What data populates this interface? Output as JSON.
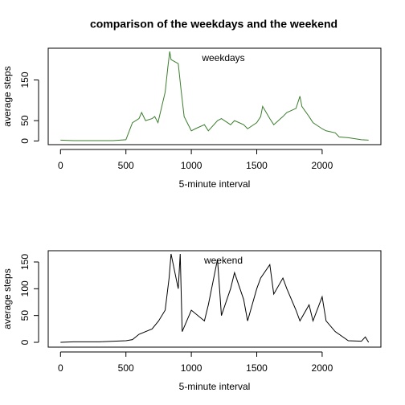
{
  "title": "comparison of the weekdays and the weekend",
  "chart_data": [
    {
      "type": "line",
      "annotation": "weekdays",
      "xlabel": "5-minute interval",
      "ylabel": "average steps",
      "xlim": [
        -94,
        2449
      ],
      "ylim": [
        -9,
        228
      ],
      "xticks": [
        0,
        500,
        1000,
        1500,
        2000
      ],
      "yticks": [
        0,
        50,
        150
      ],
      "series": [
        {
          "name": "weekdays",
          "color": "#3b7d2c",
          "x": [
            0,
            100,
            200,
            300,
            400,
            500,
            520,
            550,
            600,
            620,
            650,
            700,
            720,
            745,
            800,
            820,
            835,
            845,
            900,
            920,
            945,
            1000,
            1030,
            1100,
            1130,
            1200,
            1230,
            1300,
            1330,
            1400,
            1430,
            1500,
            1530,
            1545,
            1600,
            1630,
            1700,
            1730,
            1800,
            1830,
            1845,
            1900,
            1930,
            2000,
            2030,
            2100,
            2130,
            2200,
            2300,
            2355
          ],
          "values": [
            2,
            1,
            1,
            1,
            1,
            3,
            20,
            45,
            55,
            70,
            50,
            55,
            60,
            45,
            120,
            180,
            220,
            200,
            190,
            130,
            60,
            25,
            30,
            40,
            25,
            50,
            55,
            40,
            50,
            40,
            30,
            45,
            60,
            85,
            55,
            40,
            60,
            70,
            80,
            110,
            85,
            60,
            45,
            30,
            25,
            20,
            10,
            8,
            3,
            2
          ]
        }
      ]
    },
    {
      "type": "line",
      "annotation": "weekend",
      "xlabel": "5-minute interval",
      "ylabel": "average steps",
      "xlim": [
        -94,
        2449
      ],
      "ylim": [
        -9,
        171
      ],
      "xticks": [
        0,
        500,
        1000,
        1500,
        2000
      ],
      "yticks": [
        0,
        50,
        100,
        150
      ],
      "series": [
        {
          "name": "weekend",
          "color": "#000000",
          "x": [
            0,
            100,
            300,
            500,
            550,
            600,
            700,
            750,
            800,
            830,
            845,
            900,
            915,
            930,
            1000,
            1100,
            1130,
            1200,
            1230,
            1300,
            1330,
            1400,
            1430,
            1500,
            1530,
            1600,
            1630,
            1700,
            1730,
            1800,
            1830,
            1900,
            1930,
            2000,
            2030,
            2100,
            2200,
            2300,
            2330,
            2355
          ],
          "values": [
            0,
            1,
            1,
            3,
            5,
            15,
            25,
            40,
            60,
            120,
            165,
            100,
            165,
            20,
            60,
            40,
            70,
            155,
            50,
            100,
            130,
            80,
            40,
            100,
            120,
            145,
            90,
            120,
            100,
            60,
            40,
            70,
            40,
            85,
            40,
            20,
            3,
            2,
            10,
            0
          ]
        }
      ]
    }
  ]
}
